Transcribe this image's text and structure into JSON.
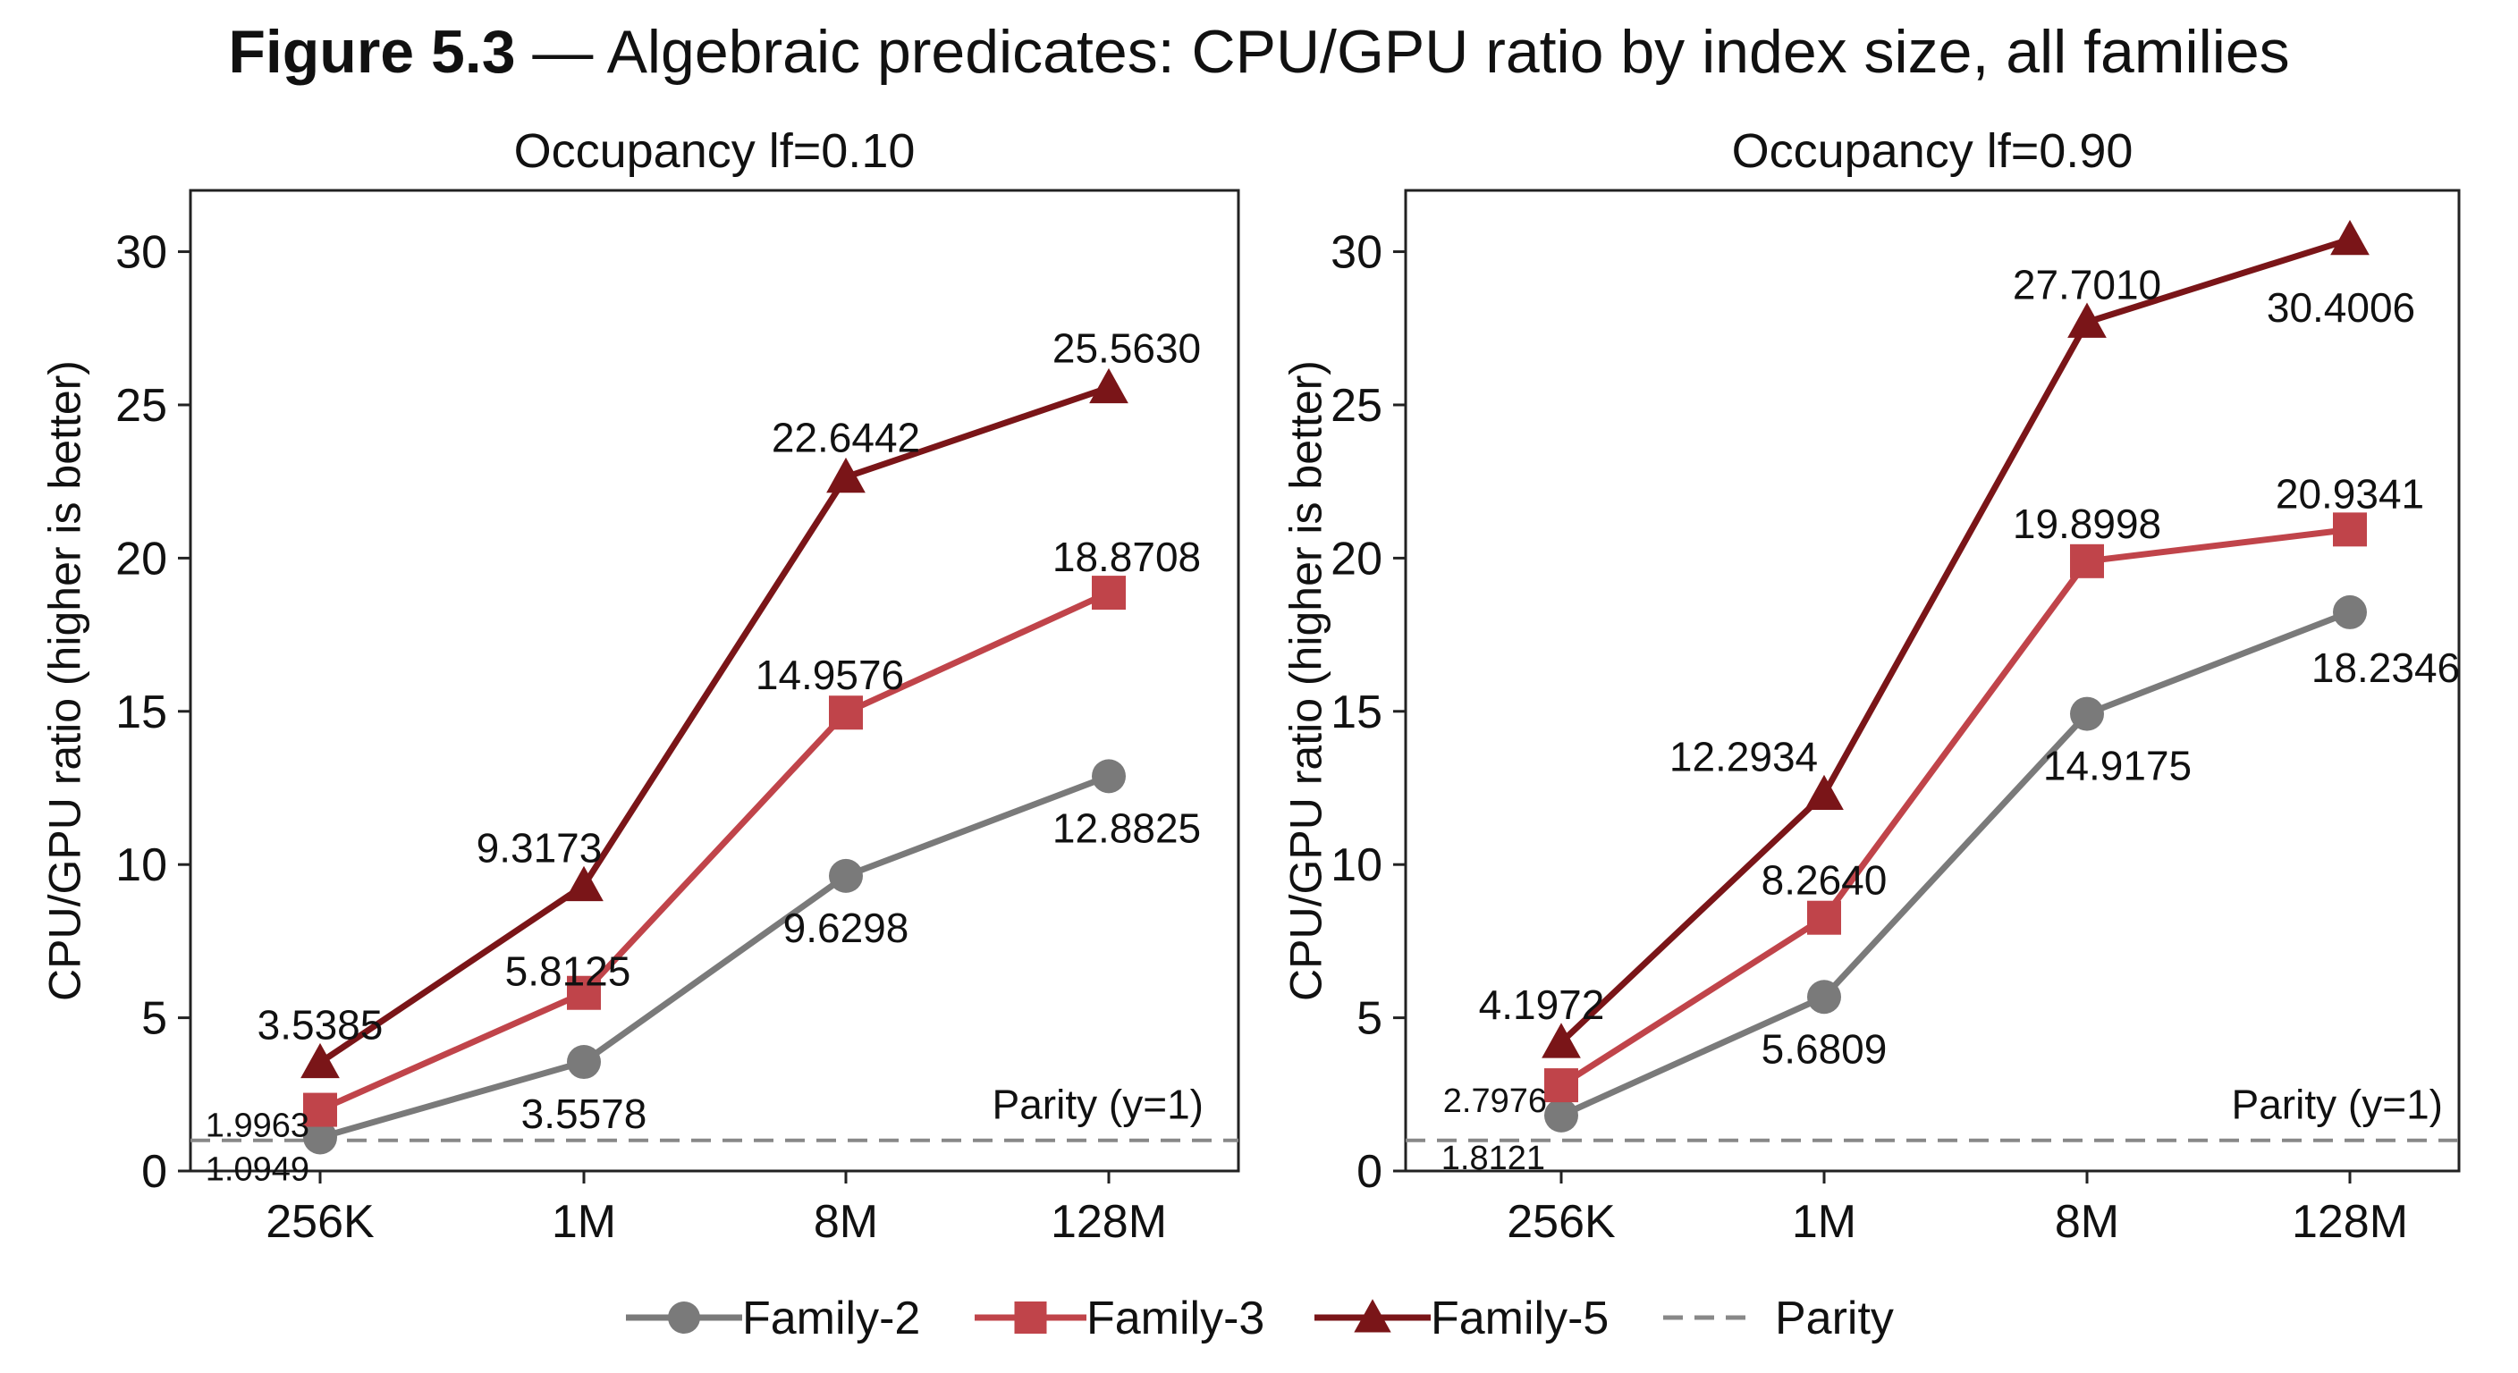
{
  "figure_title": {
    "number": "Figure 5.3",
    "separator": " — ",
    "text": "Algebraic predicates: CPU/GPU ratio by index size, all families"
  },
  "colors": {
    "family_2": "#7a7a7a",
    "family_3": "#c0444a",
    "family_5": "#7a1518",
    "parity": "#888888"
  },
  "legend": [
    {
      "label": "Family-2",
      "marker": "circle",
      "color": "#7a7a7a"
    },
    {
      "label": "Family-3",
      "marker": "square",
      "color": "#c0444a"
    },
    {
      "label": "Family-5",
      "marker": "triangle",
      "color": "#7a1518"
    },
    {
      "label": "Parity",
      "marker": "dashed",
      "color": "#888888"
    }
  ],
  "chart_data": [
    {
      "type": "line",
      "title": "Occupancy lf=0.10",
      "xlabel": "",
      "ylabel": "CPU/GPU ratio (higher is better)",
      "categories": [
        "256K",
        "1M",
        "8M",
        "128M"
      ],
      "ylim": [
        0,
        32
      ],
      "yticks": [
        0,
        5,
        10,
        15,
        20,
        25,
        30
      ],
      "grid": false,
      "parity": {
        "y": 1,
        "label": "Parity (y=1)"
      },
      "series": [
        {
          "name": "Family-2",
          "marker": "circle",
          "values": [
            1.0949,
            3.5578,
            9.6298,
            12.8825
          ],
          "labels": [
            "1.0949",
            "3.5578",
            "9.6298",
            "12.8825"
          ]
        },
        {
          "name": "Family-3",
          "marker": "square",
          "values": [
            1.9963,
            5.8125,
            14.9576,
            18.8708
          ],
          "labels": [
            "1.9963",
            "5.8125",
            "14.9576",
            "18.8708"
          ]
        },
        {
          "name": "Family-5",
          "marker": "triangle",
          "values": [
            3.5385,
            9.3173,
            22.6442,
            25.563
          ],
          "labels": [
            "3.5385",
            "9.3173",
            "22.6442",
            "25.5630"
          ]
        }
      ]
    },
    {
      "type": "line",
      "title": "Occupancy lf=0.90",
      "xlabel": "",
      "ylabel": "CPU/GPU ratio (higher is better)",
      "categories": [
        "256K",
        "1M",
        "8M",
        "128M"
      ],
      "ylim": [
        0,
        32
      ],
      "yticks": [
        0,
        5,
        10,
        15,
        20,
        25,
        30
      ],
      "grid": false,
      "parity": {
        "y": 1,
        "label": "Parity (y=1)"
      },
      "series": [
        {
          "name": "Family-2",
          "marker": "circle",
          "values": [
            1.8121,
            5.6809,
            14.9175,
            18.2346
          ],
          "labels": [
            "1.8121",
            "5.6809",
            "14.9175",
            "18.2346"
          ]
        },
        {
          "name": "Family-3",
          "marker": "square",
          "values": [
            2.7976,
            8.264,
            19.8998,
            20.9341
          ],
          "labels": [
            "2.7976",
            "8.2640",
            "19.8998",
            "20.9341"
          ]
        },
        {
          "name": "Family-5",
          "marker": "triangle",
          "values": [
            4.1972,
            12.2934,
            27.701,
            30.4006
          ],
          "labels": [
            "4.1972",
            "12.2934",
            "27.7010",
            "30.4006"
          ]
        }
      ]
    }
  ]
}
